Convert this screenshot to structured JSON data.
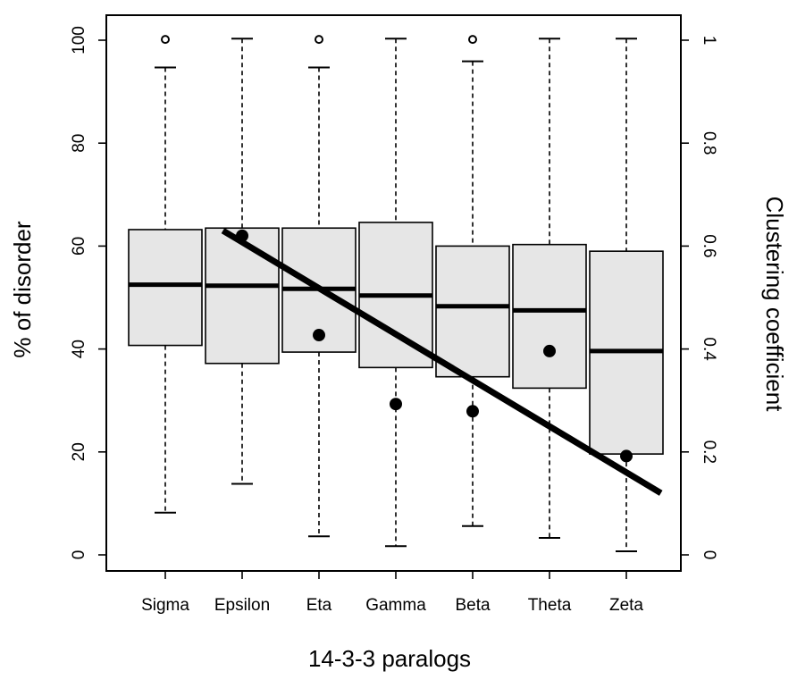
{
  "chart_data": {
    "type": "box",
    "xlabel": "14-3-3 paralogs",
    "ylabel_left": "% of disorder",
    "ylabel_right": "Clustering coefficient",
    "ylim_left": [
      0,
      100
    ],
    "ylim_right": [
      0,
      1
    ],
    "yticks_left": [
      0,
      20,
      40,
      60,
      80,
      100
    ],
    "yticks_right": [
      0,
      0.2,
      0.4,
      0.6,
      0.8,
      1
    ],
    "ytick_labels_right": [
      "0",
      "0.2",
      "0.4",
      "0.6",
      "0.8",
      "1"
    ],
    "categories": [
      "Sigma",
      "Epsilon",
      "Eta",
      "Gamma",
      "Beta",
      "Theta",
      "Zeta"
    ],
    "boxes": [
      {
        "name": "Sigma",
        "whisker_low": 8.2,
        "q1": 40.7,
        "median": 52.5,
        "q3": 63.2,
        "whisker_high": 94.7,
        "outliers": [
          100.5
        ]
      },
      {
        "name": "Epsilon",
        "whisker_low": 13.8,
        "q1": 37.2,
        "median": 52.3,
        "q3": 63.5,
        "whisker_high": 100.3,
        "outliers": []
      },
      {
        "name": "Eta",
        "whisker_low": 3.6,
        "q1": 39.4,
        "median": 51.7,
        "q3": 63.5,
        "whisker_high": 94.7,
        "outliers": [
          100.5
        ]
      },
      {
        "name": "Gamma",
        "whisker_low": 1.7,
        "q1": 36.4,
        "median": 50.4,
        "q3": 64.6,
        "whisker_high": 100.3,
        "outliers": []
      },
      {
        "name": "Beta",
        "whisker_low": 5.6,
        "q1": 34.6,
        "median": 48.3,
        "q3": 60.0,
        "whisker_high": 95.9,
        "outliers": [
          100.5
        ]
      },
      {
        "name": "Theta",
        "whisker_low": 3.3,
        "q1": 32.4,
        "median": 47.5,
        "q3": 60.3,
        "whisker_high": 100.3,
        "outliers": []
      },
      {
        "name": "Zeta",
        "whisker_low": 0.7,
        "q1": 19.6,
        "median": 39.6,
        "q3": 59.0,
        "whisker_high": 100.3,
        "outliers": []
      }
    ],
    "clustering_coefficient_points": [
      {
        "category": "Epsilon",
        "value": 0.62
      },
      {
        "category": "Eta",
        "value": 0.427
      },
      {
        "category": "Gamma",
        "value": 0.293
      },
      {
        "category": "Beta",
        "value": 0.279
      },
      {
        "category": "Theta",
        "value": 0.396
      },
      {
        "category": "Zeta",
        "value": 0.192
      }
    ],
    "trend_line": {
      "axis": "right",
      "x_start": 0.75,
      "y_start": 0.63,
      "x_end": 6.45,
      "y_end": 0.12
    },
    "box_fill_color": "#e6e6e6",
    "grid": false,
    "legend": "none"
  }
}
